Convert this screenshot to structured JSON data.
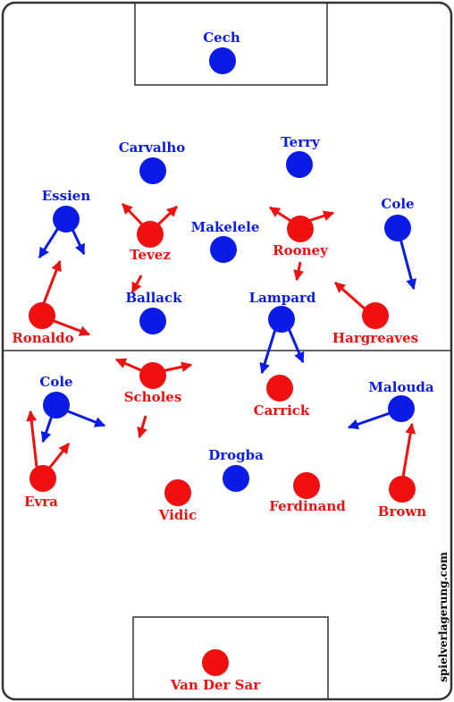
{
  "colors": {
    "team_blue": "#0a1be8",
    "team_red": "#f01010",
    "lines": "#333333",
    "background": "#ffffff"
  },
  "watermark": "spielverlagerung.com",
  "players": {
    "cech": {
      "name": "Cech",
      "team": "blue"
    },
    "carvalho": {
      "name": "Carvalho",
      "team": "blue"
    },
    "terry": {
      "name": "Terry",
      "team": "blue"
    },
    "essien": {
      "name": "Essien",
      "team": "blue"
    },
    "cole_chelsea": {
      "name": "Cole",
      "team": "blue"
    },
    "makelele": {
      "name": "Makelele",
      "team": "blue"
    },
    "ballack": {
      "name": "Ballack",
      "team": "blue"
    },
    "lampard": {
      "name": "Lampard",
      "team": "blue"
    },
    "malouda": {
      "name": "Malouda",
      "team": "blue"
    },
    "drogba": {
      "name": "Drogba",
      "team": "blue"
    },
    "cole_left": {
      "name": "Cole",
      "team": "blue"
    },
    "tevez": {
      "name": "Tevez",
      "team": "red"
    },
    "rooney": {
      "name": "Rooney",
      "team": "red"
    },
    "ronaldo": {
      "name": "Ronaldo",
      "team": "red"
    },
    "hargreaves": {
      "name": "Hargreaves",
      "team": "red"
    },
    "scholes": {
      "name": "Scholes",
      "team": "red"
    },
    "carrick": {
      "name": "Carrick",
      "team": "red"
    },
    "evra": {
      "name": "Evra",
      "team": "red"
    },
    "vidic": {
      "name": "Vidic",
      "team": "red"
    },
    "ferdinand": {
      "name": "Ferdinand",
      "team": "red"
    },
    "brown": {
      "name": "Brown",
      "team": "red"
    },
    "van_der_sar": {
      "name": "Van Der Sar",
      "team": "red"
    }
  }
}
